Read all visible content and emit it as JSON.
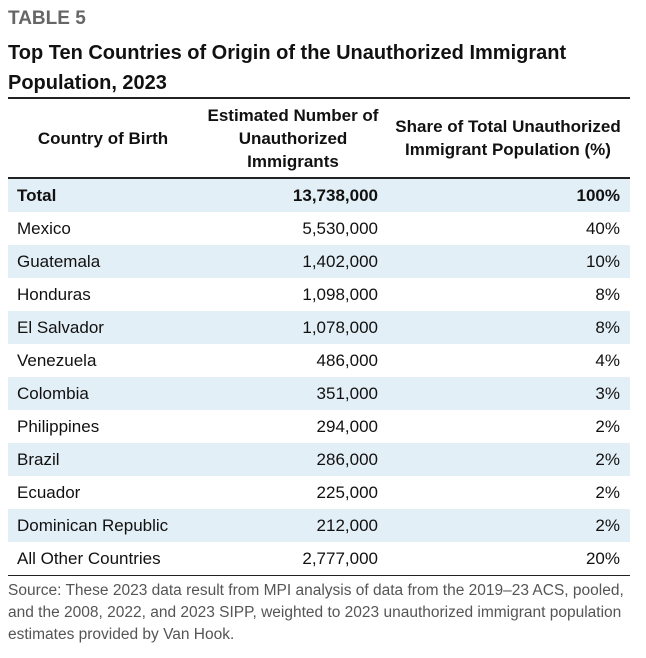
{
  "label": "TABLE 5",
  "title": "Top Ten Countries of Origin of the Unauthorized Immigrant Population, 2023",
  "table": {
    "headers": [
      "Country of Birth",
      "Estimated Number of Unauthorized Immigrants",
      "Share of Total Unauthorized Immigrant Population (%)"
    ],
    "rows": [
      [
        "Total",
        "13,738,000",
        "100%"
      ],
      [
        "Mexico",
        "5,530,000",
        "40%"
      ],
      [
        "Guatemala",
        "1,402,000",
        "10%"
      ],
      [
        "Honduras",
        "1,098,000",
        "8%"
      ],
      [
        "El Salvador",
        "1,078,000",
        "8%"
      ],
      [
        "Venezuela",
        "486,000",
        "4%"
      ],
      [
        "Colombia",
        "351,000",
        "3%"
      ],
      [
        "Philippines",
        "294,000",
        "2%"
      ],
      [
        "Brazil",
        "286,000",
        "2%"
      ],
      [
        "Ecuador",
        "225,000",
        "2%"
      ],
      [
        "Dominican Republic",
        "212,000",
        "2%"
      ],
      [
        "All Other Countries",
        "2,777,000",
        "20%"
      ]
    ]
  },
  "source": "Source: These 2023 data result from MPI analysis of data from the 2019–23 ACS, pooled, and the 2008, 2022, and 2023 SIPP, weighted to 2023 unauthorized immigrant population estimates provided by Van Hook."
}
